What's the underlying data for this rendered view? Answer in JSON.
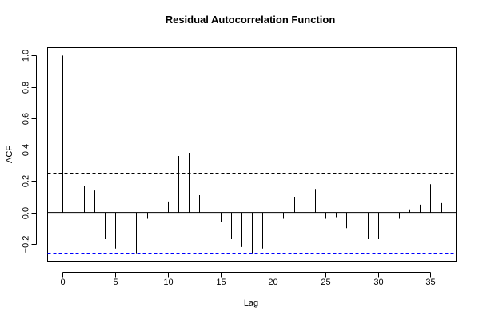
{
  "chart_data": {
    "type": "bar",
    "title": "Residual Autocorrelation Function",
    "xlabel": "Lag",
    "ylabel": "ACF",
    "xlim": [
      -1.44,
      37.44
    ],
    "ylim": [
      -0.31,
      1.05
    ],
    "xticks": [
      0,
      5,
      10,
      15,
      20,
      25,
      30,
      35
    ],
    "yticks": [
      -0.2,
      0.0,
      0.2,
      0.4,
      0.6,
      0.8,
      1.0
    ],
    "ytick_labels": [
      "−0.2",
      "0.0",
      "0.2",
      "0.4",
      "0.6",
      "0.8",
      "1.0"
    ],
    "x": [
      0,
      1,
      2,
      3,
      4,
      5,
      6,
      7,
      8,
      9,
      10,
      11,
      12,
      13,
      14,
      15,
      16,
      17,
      18,
      19,
      20,
      21,
      22,
      23,
      24,
      25,
      26,
      27,
      28,
      29,
      30,
      31,
      32,
      33,
      34,
      35,
      36
    ],
    "values": [
      1.0,
      0.37,
      0.17,
      0.14,
      -0.17,
      -0.23,
      -0.16,
      -0.26,
      -0.04,
      0.03,
      0.07,
      0.36,
      0.38,
      0.11,
      0.05,
      -0.06,
      -0.17,
      -0.22,
      -0.26,
      -0.23,
      -0.17,
      -0.04,
      0.1,
      0.18,
      0.15,
      -0.04,
      -0.03,
      -0.1,
      -0.19,
      -0.17,
      -0.17,
      -0.15,
      -0.04,
      0.02,
      0.05,
      0.18,
      0.06
    ],
    "confidence_bands": [
      0.254,
      -0.254
    ],
    "confidence_band_colors": [
      "#000000",
      "#0000ff"
    ],
    "grid": false,
    "zero_line": true
  }
}
